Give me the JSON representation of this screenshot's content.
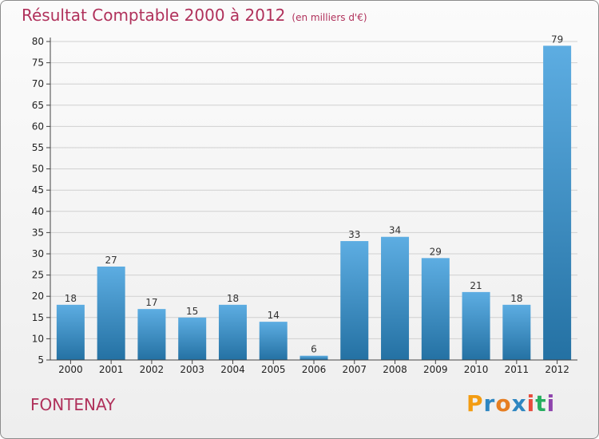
{
  "header": {
    "title": "Résultat Comptable 2000 à 2012",
    "subtitle": "(en milliers d'€)"
  },
  "footer": {
    "location": "FONTENAY",
    "logo_letters": [
      "P",
      "r",
      "o",
      "x",
      "i",
      "t",
      "i"
    ],
    "logo_colors": [
      "#f39c12",
      "#2e86c1",
      "#e67e22",
      "#2e86c1",
      "#e74c3c",
      "#27ae60",
      "#8e44ad"
    ]
  },
  "colors": {
    "bar_top": "#5dade2",
    "bar_bottom": "#2471a3",
    "grid": "#d0d0d0",
    "axis": "#444444"
  },
  "chart_data": {
    "type": "bar",
    "title": "Résultat Comptable 2000 à 2012",
    "subtitle": "(en milliers d'€)",
    "xlabel": "",
    "ylabel": "",
    "categories": [
      "2000",
      "2001",
      "2002",
      "2003",
      "2004",
      "2005",
      "2006",
      "2007",
      "2008",
      "2009",
      "2010",
      "2011",
      "2012"
    ],
    "values": [
      18,
      27,
      17,
      15,
      18,
      14,
      6,
      33,
      34,
      29,
      21,
      18,
      79
    ],
    "ylim": [
      5,
      80
    ],
    "yticks": [
      5,
      10,
      15,
      20,
      25,
      30,
      35,
      40,
      45,
      50,
      55,
      60,
      65,
      70,
      75,
      80
    ],
    "grid": true
  }
}
